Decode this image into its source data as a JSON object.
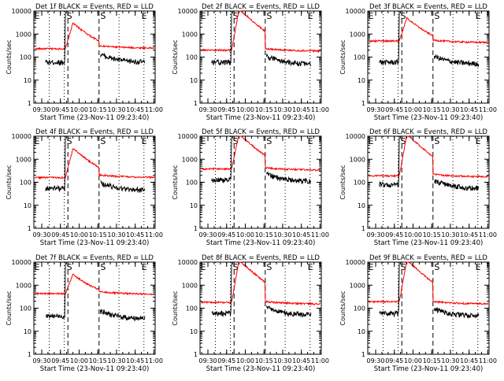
{
  "chart_data": {
    "type": "line",
    "ylabel": "Counts/sec",
    "xlabel": "Start Time (23-Nov-11 09:23:40)",
    "time_ticks": [
      "09:30",
      "09:45",
      "10:00",
      "10:15",
      "10:30",
      "10:45",
      "11:00"
    ],
    "y_ticks": [
      "1",
      "10",
      "100",
      "1000",
      "10000"
    ],
    "ylim": [
      1,
      10000
    ],
    "y_scale": "log",
    "xlim": [
      "09:23:40",
      "11:01:00"
    ],
    "interval_markers": {
      "dotted": [
        "09:36",
        "09:48",
        "10:32",
        "10:52"
      ],
      "dashed": [
        "09:51",
        "10:16"
      ]
    },
    "marker_letters": [
      "E",
      "S",
      "S",
      "E"
    ],
    "colors": {
      "events": "#000000",
      "lld": "#ff0000"
    },
    "panels": [
      {
        "title": "Det 1f BLACK = Events, RED = LLD",
        "lld_pre": 230,
        "lld_post": 240,
        "ev_pre": 60,
        "ev_post": 60,
        "peak": 3000
      },
      {
        "title": "Det 2f BLACK = Events, RED = LLD",
        "lld_pre": 200,
        "lld_post": 180,
        "ev_pre": 60,
        "ev_post": 50,
        "peak": 12000
      },
      {
        "title": "Det 3f BLACK = Events, RED = LLD",
        "lld_pre": 500,
        "lld_post": 420,
        "ev_pre": 60,
        "ev_post": 50,
        "peak": 5000
      },
      {
        "title": "Det 4f BLACK = Events, RED = LLD",
        "lld_pre": 160,
        "lld_post": 160,
        "ev_pre": 55,
        "ev_post": 45,
        "peak": 3000
      },
      {
        "title": "Det 5f BLACK = Events, RED = LLD",
        "lld_pre": 380,
        "lld_post": 330,
        "ev_pre": 130,
        "ev_post": 110,
        "peak": 12000
      },
      {
        "title": "Det 6f BLACK = Events, RED = LLD",
        "lld_pre": 190,
        "lld_post": 170,
        "ev_pre": 80,
        "ev_post": 55,
        "peak": 12000
      },
      {
        "title": "Det 7f BLACK = Events, RED = LLD",
        "lld_pre": 430,
        "lld_post": 400,
        "ev_pre": 45,
        "ev_post": 35,
        "peak": 3000
      },
      {
        "title": "Det 8f BLACK = Events, RED = LLD",
        "lld_pre": 180,
        "lld_post": 150,
        "ev_pre": 60,
        "ev_post": 50,
        "peak": 12000
      },
      {
        "title": "Det 9f BLACK = Events, RED = LLD",
        "lld_pre": 190,
        "lld_post": 150,
        "ev_pre": 60,
        "ev_post": 45,
        "peak": 12000
      }
    ]
  }
}
